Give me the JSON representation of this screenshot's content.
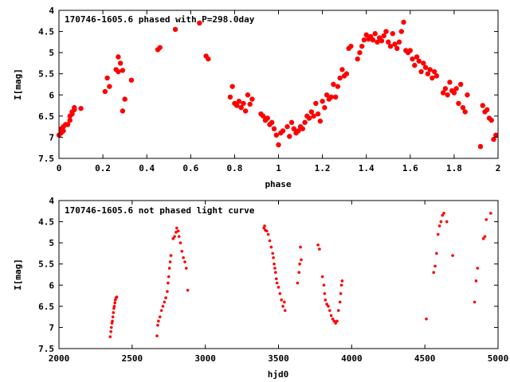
{
  "chart_data": [
    {
      "type": "scatter",
      "title": "170746-1605.6 phased with P=298.0day",
      "xlabel": "phase",
      "ylabel": "I[mag]",
      "xlim": [
        0,
        2
      ],
      "ylim": [
        4,
        7.5
      ],
      "y_inverted": true,
      "xticks": [
        "0",
        "0.2",
        "0.4",
        "0.6",
        "0.8",
        "1",
        "1.2",
        "1.4",
        "1.6",
        "1.8",
        "2"
      ],
      "yticks": [
        "4",
        "4.5",
        "5",
        "5.5",
        "6",
        "6.5",
        "7",
        "7.5"
      ],
      "marker": "filled-circle-large",
      "color": "#ff0000",
      "grid": false,
      "legend": "none",
      "points": [
        [
          0.0,
          6.95
        ],
        [
          0.01,
          6.9
        ],
        [
          0.01,
          6.8
        ],
        [
          0.02,
          6.85
        ],
        [
          0.02,
          6.75
        ],
        [
          0.03,
          6.7
        ],
        [
          0.04,
          6.7
        ],
        [
          0.05,
          6.6
        ],
        [
          0.05,
          6.5
        ],
        [
          0.06,
          6.45
        ],
        [
          0.06,
          6.4
        ],
        [
          0.07,
          6.35
        ],
        [
          0.07,
          6.3
        ],
        [
          0.1,
          6.32
        ],
        [
          0.21,
          5.92
        ],
        [
          0.22,
          5.6
        ],
        [
          0.23,
          5.8
        ],
        [
          0.26,
          5.4
        ],
        [
          0.27,
          5.45
        ],
        [
          0.27,
          5.1
        ],
        [
          0.28,
          5.25
        ],
        [
          0.29,
          5.42
        ],
        [
          0.29,
          6.38
        ],
        [
          0.3,
          6.1
        ],
        [
          0.33,
          5.65
        ],
        [
          0.45,
          4.93
        ],
        [
          0.46,
          4.88
        ],
        [
          0.53,
          4.45
        ],
        [
          0.64,
          4.3
        ],
        [
          0.67,
          5.08
        ],
        [
          0.68,
          5.15
        ],
        [
          0.78,
          6.05
        ],
        [
          0.79,
          5.8
        ],
        [
          0.8,
          6.2
        ],
        [
          0.81,
          6.25
        ],
        [
          0.82,
          6.15
        ],
        [
          0.83,
          6.3
        ],
        [
          0.84,
          6.2
        ],
        [
          0.85,
          6.38
        ],
        [
          0.86,
          6.0
        ],
        [
          0.87,
          6.22
        ],
        [
          0.88,
          6.1
        ],
        [
          0.92,
          6.45
        ],
        [
          0.93,
          6.5
        ],
        [
          0.94,
          6.6
        ],
        [
          0.95,
          6.55
        ],
        [
          0.96,
          6.7
        ],
        [
          0.97,
          6.65
        ],
        [
          0.98,
          6.8
        ],
        [
          0.99,
          6.95
        ],
        [
          1.0,
          7.18
        ],
        [
          1.01,
          6.9
        ],
        [
          1.02,
          6.85
        ],
        [
          1.04,
          6.75
        ],
        [
          1.05,
          6.98
        ],
        [
          1.06,
          6.65
        ],
        [
          1.07,
          6.8
        ],
        [
          1.08,
          6.9
        ],
        [
          1.09,
          6.85
        ],
        [
          1.1,
          6.75
        ],
        [
          1.11,
          6.8
        ],
        [
          1.12,
          6.65
        ],
        [
          1.13,
          6.5
        ],
        [
          1.14,
          6.55
        ],
        [
          1.15,
          6.4
        ],
        [
          1.16,
          6.5
        ],
        [
          1.17,
          6.2
        ],
        [
          1.18,
          6.45
        ],
        [
          1.19,
          6.62
        ],
        [
          1.2,
          6.15
        ],
        [
          1.21,
          6.3
        ],
        [
          1.22,
          6.0
        ],
        [
          1.23,
          6.1
        ],
        [
          1.24,
          6.05
        ],
        [
          1.25,
          5.75
        ],
        [
          1.26,
          6.05
        ],
        [
          1.27,
          5.8
        ],
        [
          1.28,
          5.6
        ],
        [
          1.29,
          5.4
        ],
        [
          1.3,
          5.55
        ],
        [
          1.31,
          5.5
        ],
        [
          1.32,
          4.9
        ],
        [
          1.33,
          4.85
        ],
        [
          1.36,
          5.15
        ],
        [
          1.37,
          5.0
        ],
        [
          1.38,
          4.85
        ],
        [
          1.39,
          4.7
        ],
        [
          1.4,
          4.58
        ],
        [
          1.41,
          4.68
        ],
        [
          1.42,
          4.62
        ],
        [
          1.43,
          4.7
        ],
        [
          1.44,
          4.55
        ],
        [
          1.45,
          4.75
        ],
        [
          1.46,
          4.65
        ],
        [
          1.47,
          4.72
        ],
        [
          1.48,
          4.6
        ],
        [
          1.49,
          4.5
        ],
        [
          1.5,
          4.75
        ],
        [
          1.51,
          4.85
        ],
        [
          1.52,
          4.55
        ],
        [
          1.53,
          4.8
        ],
        [
          1.54,
          4.9
        ],
        [
          1.55,
          4.75
        ],
        [
          1.56,
          4.5
        ],
        [
          1.57,
          4.28
        ],
        [
          1.58,
          4.95
        ],
        [
          1.59,
          5.0
        ],
        [
          1.6,
          4.95
        ],
        [
          1.61,
          5.15
        ],
        [
          1.62,
          5.3
        ],
        [
          1.63,
          5.1
        ],
        [
          1.64,
          5.2
        ],
        [
          1.65,
          5.45
        ],
        [
          1.66,
          5.25
        ],
        [
          1.67,
          5.35
        ],
        [
          1.68,
          5.5
        ],
        [
          1.69,
          5.4
        ],
        [
          1.7,
          5.6
        ],
        [
          1.71,
          5.45
        ],
        [
          1.72,
          5.55
        ],
        [
          1.75,
          5.95
        ],
        [
          1.76,
          5.85
        ],
        [
          1.77,
          6.0
        ],
        [
          1.78,
          5.7
        ],
        [
          1.79,
          5.9
        ],
        [
          1.8,
          5.95
        ],
        [
          1.81,
          5.85
        ],
        [
          1.82,
          6.2
        ],
        [
          1.83,
          5.75
        ],
        [
          1.84,
          6.3
        ],
        [
          1.85,
          6.4
        ],
        [
          1.86,
          6.0
        ],
        [
          1.92,
          7.22
        ],
        [
          1.93,
          6.25
        ],
        [
          1.94,
          6.4
        ],
        [
          1.95,
          6.35
        ],
        [
          1.96,
          6.55
        ],
        [
          1.97,
          6.6
        ],
        [
          1.98,
          7.05
        ],
        [
          1.99,
          6.95
        ]
      ]
    },
    {
      "type": "scatter",
      "title": "170746-1605.6 not phased light curve",
      "xlabel": "hjd0",
      "ylabel": "I[mag]",
      "xlim": [
        2000,
        5000
      ],
      "ylim": [
        4,
        7.5
      ],
      "y_inverted": true,
      "xticks": [
        "2000",
        "2500",
        "3000",
        "3500",
        "4000",
        "4500",
        "5000"
      ],
      "yticks": [
        "4",
        "4.5",
        "5",
        "5.5",
        "6",
        "6.5",
        "7",
        "7.5"
      ],
      "marker": "filled-circle-small",
      "color": "#ff0000",
      "grid": false,
      "legend": "none",
      "points": [
        [
          2350,
          7.22
        ],
        [
          2355,
          7.1
        ],
        [
          2358,
          7.0
        ],
        [
          2362,
          6.9
        ],
        [
          2365,
          6.85
        ],
        [
          2368,
          6.75
        ],
        [
          2372,
          6.65
        ],
        [
          2375,
          6.55
        ],
        [
          2378,
          6.5
        ],
        [
          2382,
          6.42
        ],
        [
          2385,
          6.35
        ],
        [
          2390,
          6.3
        ],
        [
          2395,
          6.28
        ],
        [
          2670,
          7.2
        ],
        [
          2675,
          6.95
        ],
        [
          2680,
          6.85
        ],
        [
          2690,
          6.75
        ],
        [
          2700,
          6.6
        ],
        [
          2710,
          6.5
        ],
        [
          2720,
          6.4
        ],
        [
          2730,
          6.3
        ],
        [
          2740,
          6.15
        ],
        [
          2745,
          5.95
        ],
        [
          2750,
          5.8
        ],
        [
          2755,
          5.6
        ],
        [
          2760,
          5.45
        ],
        [
          2765,
          5.3
        ],
        [
          2780,
          4.9
        ],
        [
          2790,
          4.85
        ],
        [
          2800,
          4.75
        ],
        [
          2805,
          4.65
        ],
        [
          2815,
          4.72
        ],
        [
          2820,
          4.85
        ],
        [
          2830,
          5.0
        ],
        [
          2840,
          5.2
        ],
        [
          2850,
          5.35
        ],
        [
          2860,
          5.45
        ],
        [
          2870,
          5.6
        ],
        [
          2880,
          6.12
        ],
        [
          3400,
          4.65
        ],
        [
          3405,
          4.6
        ],
        [
          3410,
          4.7
        ],
        [
          3420,
          4.72
        ],
        [
          3430,
          4.8
        ],
        [
          3440,
          4.95
        ],
        [
          3450,
          5.1
        ],
        [
          3460,
          5.25
        ],
        [
          3465,
          5.35
        ],
        [
          3470,
          5.5
        ],
        [
          3475,
          5.6
        ],
        [
          3480,
          5.7
        ],
        [
          3485,
          5.85
        ],
        [
          3490,
          5.95
        ],
        [
          3500,
          6.05
        ],
        [
          3510,
          6.2
        ],
        [
          3520,
          6.35
        ],
        [
          3530,
          6.5
        ],
        [
          3540,
          6.4
        ],
        [
          3545,
          6.6
        ],
        [
          3630,
          5.95
        ],
        [
          3640,
          5.7
        ],
        [
          3645,
          5.5
        ],
        [
          3650,
          5.1
        ],
        [
          3655,
          5.4
        ],
        [
          3770,
          5.05
        ],
        [
          3780,
          5.15
        ],
        [
          3800,
          5.8
        ],
        [
          3810,
          6.0
        ],
        [
          3815,
          6.2
        ],
        [
          3820,
          6.35
        ],
        [
          3830,
          6.45
        ],
        [
          3840,
          6.5
        ],
        [
          3850,
          6.6
        ],
        [
          3860,
          6.72
        ],
        [
          3870,
          6.8
        ],
        [
          3880,
          6.85
        ],
        [
          3890,
          6.9
        ],
        [
          3900,
          6.85
        ],
        [
          3910,
          6.6
        ],
        [
          3920,
          6.4
        ],
        [
          3925,
          6.2
        ],
        [
          3930,
          6.0
        ],
        [
          3935,
          5.9
        ],
        [
          4510,
          6.8
        ],
        [
          4560,
          5.7
        ],
        [
          4570,
          5.55
        ],
        [
          4580,
          5.25
        ],
        [
          4590,
          4.8
        ],
        [
          4600,
          4.6
        ],
        [
          4610,
          4.5
        ],
        [
          4620,
          4.35
        ],
        [
          4630,
          4.3
        ],
        [
          4650,
          4.5
        ],
        [
          4690,
          5.3
        ],
        [
          4840,
          6.4
        ],
        [
          4850,
          5.9
        ],
        [
          4860,
          5.6
        ],
        [
          4900,
          4.9
        ],
        [
          4910,
          4.85
        ],
        [
          4920,
          4.45
        ],
        [
          4950,
          4.3
        ]
      ]
    }
  ]
}
